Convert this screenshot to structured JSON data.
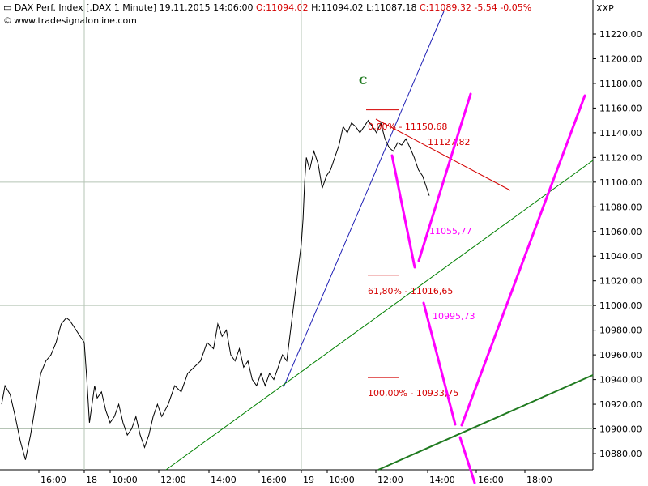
{
  "header": {
    "symbol": "DAX Perf. Index [.DAX",
    "interval": "1 Minute]",
    "datetime": "19.11.2015 14:06:00",
    "open": "O:11094,02",
    "high": "H:11094,02",
    "low": "L:11087,18",
    "close": "C:11089,32",
    "change": "-5,54",
    "change_pct": "-0,05%",
    "website": "www.tradesignalonline.com",
    "copyright_symbol": "©"
  },
  "scale_name": "XXP",
  "colors": {
    "price": "#000000",
    "grid": "#b5c4b5",
    "fib": "#d40000",
    "projection": "#ff00ff",
    "channel_thin": "#008000",
    "channel_thick": "#1f7a1f",
    "trendline_blue": "#1f1fb5"
  },
  "chart_data": {
    "type": "line",
    "series_name": "DAX Perf. Index [.DAX",
    "y_axis": {
      "ylim": [
        10860,
        11240
      ],
      "ticks": [
        10880,
        10900,
        10920,
        10940,
        10960,
        10980,
        11000,
        11020,
        11040,
        11060,
        11080,
        11100,
        11120,
        11140,
        11160,
        11180,
        11200,
        11220
      ],
      "tick_labels": [
        "10880,00",
        "10900,00",
        "10920,00",
        "10940,00",
        "10960,00",
        "10980,00",
        "11000,00",
        "11020,00",
        "11040,00",
        "11060,00",
        "11080,00",
        "11100,00",
        "11120,00",
        "11140,00",
        "11160,00",
        "11180,00",
        "11200,00",
        "11220,00"
      ]
    },
    "x_axis": {
      "tick_labels": [
        "16:00",
        "18",
        "10:00",
        "12:00",
        "14:00",
        "16:00",
        "19",
        "10:00",
        "12:00",
        "14:00",
        "16:00",
        "18:00"
      ]
    },
    "price_path": [
      [
        "17 15:30",
        10920
      ],
      [
        "17 15:34",
        10935
      ],
      [
        "17 15:40",
        10928
      ],
      [
        "17 15:46",
        10910
      ],
      [
        "17 15:52",
        10890
      ],
      [
        "17 15:58",
        10875
      ],
      [
        "17 16:04",
        10895
      ],
      [
        "17 16:10",
        10920
      ],
      [
        "17 16:16",
        10945
      ],
      [
        "17 16:22",
        10955
      ],
      [
        "17 16:28",
        10960
      ],
      [
        "17 16:34",
        10970
      ],
      [
        "17 16:40",
        10985
      ],
      [
        "17 16:46",
        10990
      ],
      [
        "17 16:50",
        10988
      ],
      [
        "18 09:00",
        10970
      ],
      [
        "18 09:06",
        10940
      ],
      [
        "18 09:12",
        10905
      ],
      [
        "18 09:18",
        10920
      ],
      [
        "18 09:24",
        10935
      ],
      [
        "18 09:30",
        10925
      ],
      [
        "18 09:40",
        10930
      ],
      [
        "18 09:50",
        10915
      ],
      [
        "18 10:00",
        10905
      ],
      [
        "18 10:10",
        10910
      ],
      [
        "18 10:20",
        10920
      ],
      [
        "18 10:30",
        10905
      ],
      [
        "18 10:40",
        10895
      ],
      [
        "18 10:50",
        10900
      ],
      [
        "18 11:00",
        10910
      ],
      [
        "18 11:10",
        10895
      ],
      [
        "18 11:20",
        10885
      ],
      [
        "18 11:30",
        10895
      ],
      [
        "18 11:40",
        10910
      ],
      [
        "18 11:50",
        10920
      ],
      [
        "18 12:00",
        10910
      ],
      [
        "18 12:15",
        10920
      ],
      [
        "18 12:30",
        10935
      ],
      [
        "18 12:45",
        10930
      ],
      [
        "18 13:00",
        10945
      ],
      [
        "18 13:15",
        10950
      ],
      [
        "18 13:30",
        10955
      ],
      [
        "18 13:45",
        10970
      ],
      [
        "18 14:00",
        10965
      ],
      [
        "18 14:10",
        10985
      ],
      [
        "18 14:20",
        10975
      ],
      [
        "18 14:30",
        10980
      ],
      [
        "18 14:40",
        10960
      ],
      [
        "18 14:50",
        10955
      ],
      [
        "18 15:00",
        10965
      ],
      [
        "18 15:10",
        10950
      ],
      [
        "18 15:20",
        10955
      ],
      [
        "18 15:30",
        10940
      ],
      [
        "18 15:40",
        10935
      ],
      [
        "18 15:50",
        10945
      ],
      [
        "18 16:00",
        10935
      ],
      [
        "18 16:10",
        10945
      ],
      [
        "18 16:20",
        10940
      ],
      [
        "18 16:30",
        10950
      ],
      [
        "18 16:40",
        10960
      ],
      [
        "18 16:50",
        10955
      ],
      [
        "19 09:00",
        11050
      ],
      [
        "19 09:04",
        11070
      ],
      [
        "19 09:08",
        11100
      ],
      [
        "19 09:12",
        11120
      ],
      [
        "19 09:20",
        11110
      ],
      [
        "19 09:30",
        11125
      ],
      [
        "19 09:40",
        11115
      ],
      [
        "19 09:50",
        11095
      ],
      [
        "19 10:00",
        11105
      ],
      [
        "19 10:10",
        11110
      ],
      [
        "19 10:20",
        11120
      ],
      [
        "19 10:30",
        11130
      ],
      [
        "19 10:40",
        11145
      ],
      [
        "19 10:50",
        11140
      ],
      [
        "19 11:00",
        11148
      ],
      [
        "19 11:10",
        11145
      ],
      [
        "19 11:20",
        11140
      ],
      [
        "19 11:30",
        11145
      ],
      [
        "19 11:40",
        11150
      ],
      [
        "19 11:50",
        11145
      ],
      [
        "19 12:00",
        11140
      ],
      [
        "19 12:10",
        11148
      ],
      [
        "19 12:20",
        11135
      ],
      [
        "19 12:30",
        11128
      ],
      [
        "19 12:40",
        11125
      ],
      [
        "19 12:50",
        11132
      ],
      [
        "19 13:00",
        11130
      ],
      [
        "19 13:10",
        11135
      ],
      [
        "19 13:20",
        11128
      ],
      [
        "19 13:30",
        11120
      ],
      [
        "19 13:40",
        11110
      ],
      [
        "19 13:50",
        11105
      ],
      [
        "19 14:00",
        11095
      ],
      [
        "19 14:06",
        11089
      ]
    ],
    "annotations": [
      {
        "text": "C"
      },
      {
        "text": "0,00% - 11150,68",
        "value": 11150.68
      },
      {
        "text": "11127,82",
        "value": 11127.82
      },
      {
        "text": "11055,77",
        "value": 11055.77
      },
      {
        "text": "61,80% - 11016,65",
        "value": 11016.65
      },
      {
        "text": "10995,73",
        "value": 10995.73
      },
      {
        "text": "100,00% - 10933,75",
        "value": 10933.75
      }
    ],
    "grid": true
  }
}
